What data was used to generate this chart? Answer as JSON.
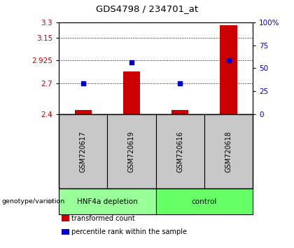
{
  "title": "GDS4798 / 234701_at",
  "samples": [
    "GSM720617",
    "GSM720619",
    "GSM720616",
    "GSM720618"
  ],
  "bar_values": [
    2.44,
    2.82,
    2.44,
    3.27
  ],
  "dot_values": [
    2.7,
    2.905,
    2.7,
    2.93
  ],
  "bar_color": "#cc0000",
  "dot_color": "#0000cc",
  "ylim_left": [
    2.4,
    3.3
  ],
  "yticks_left": [
    2.4,
    2.7,
    2.925,
    3.15,
    3.3
  ],
  "ytick_labels_left": [
    "2.4",
    "2.7",
    "2.925",
    "3.15",
    "3.3"
  ],
  "ylim_right": [
    0,
    100
  ],
  "yticks_right": [
    0,
    25,
    50,
    75,
    100
  ],
  "ytick_labels_right": [
    "0",
    "25",
    "50",
    "75",
    "100%"
  ],
  "grid_ticks": [
    2.7,
    2.925,
    3.15
  ],
  "group1_label": "HNF4a depletion",
  "group2_label": "control",
  "group1_color": "#99ff99",
  "group2_color": "#66ff66",
  "group_row_label": "genotype/variation",
  "legend_items": [
    {
      "label": "transformed count",
      "color": "#cc0000"
    },
    {
      "label": "percentile rank within the sample",
      "color": "#0000cc"
    }
  ],
  "bar_bottom": 2.4,
  "sample_area_color": "#c8c8c8",
  "bar_width": 0.35
}
